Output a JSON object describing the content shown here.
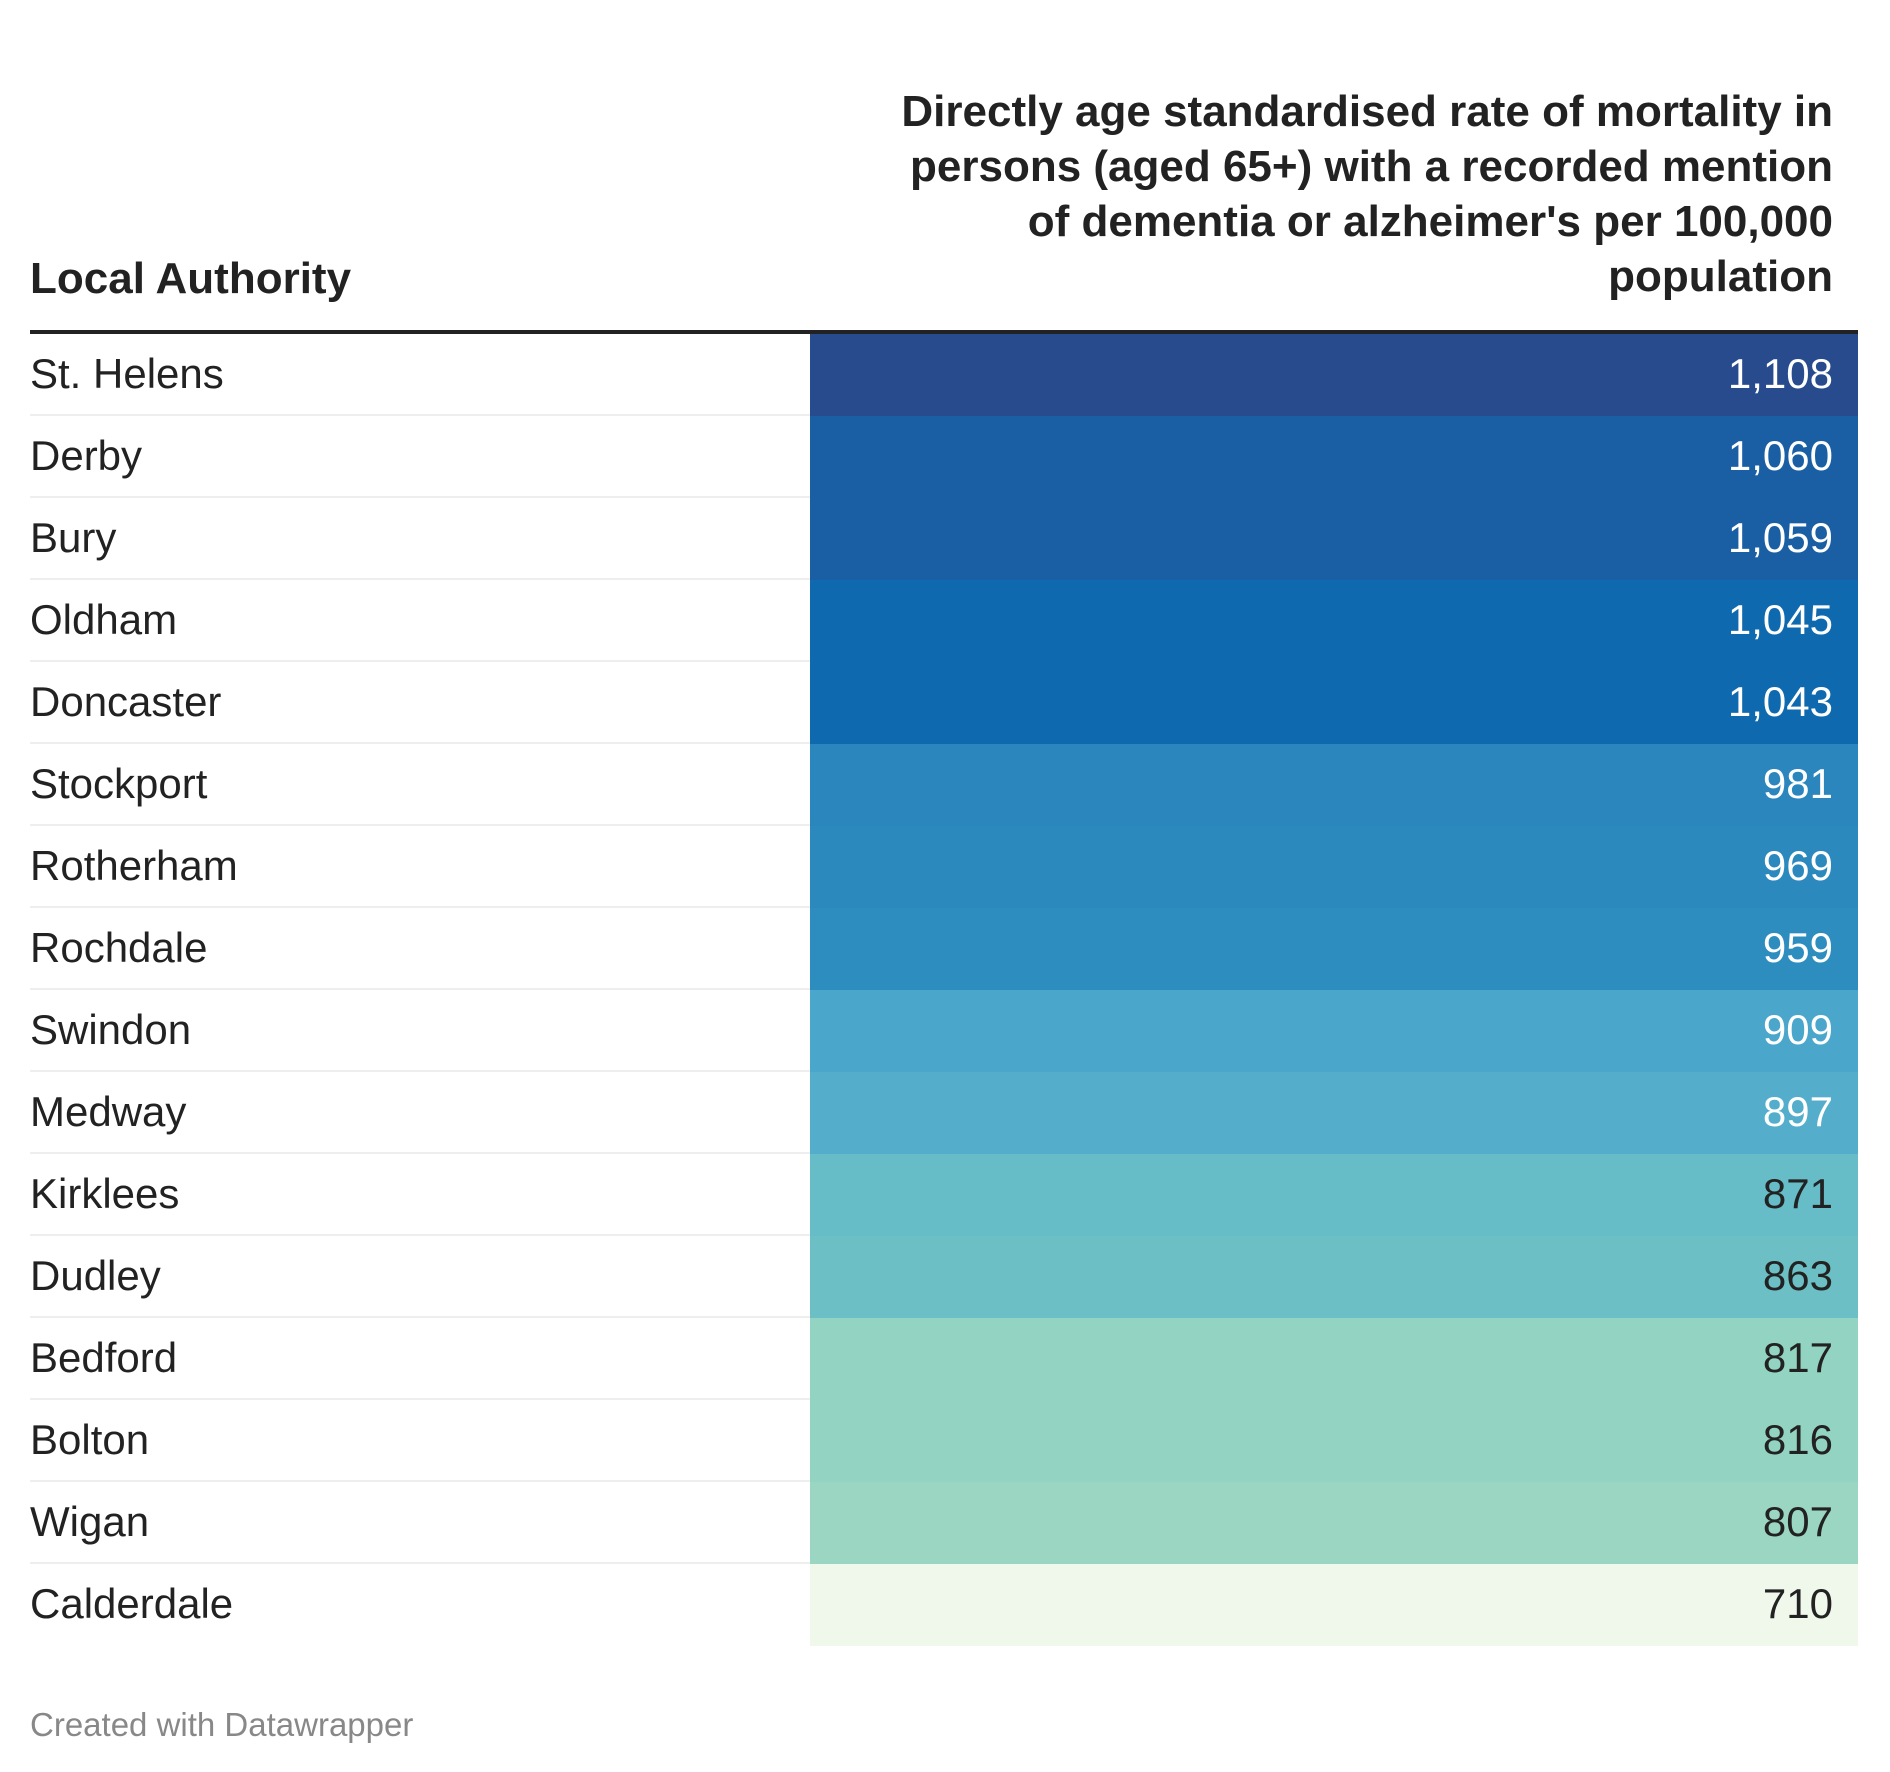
{
  "chart_data": {
    "type": "table",
    "columns": [
      "Local Authority",
      "Directly age standardised rate of mortality in persons (aged 65+) with a recorded mention of dementia or alzheimer's per 100,000 population"
    ],
    "header_lines": [
      "Directly age standardised rate of mortality in",
      "persons (aged 65+) with a recorded mention",
      "of dementia or alzheimer's per 100,000",
      "population"
    ],
    "rows": [
      {
        "name": "St. Helens",
        "value": "1,108",
        "color": "#284b8d"
      },
      {
        "name": "Derby",
        "value": "1,060",
        "color": "#1a5fa3"
      },
      {
        "name": "Bury",
        "value": "1,059",
        "color": "#1a5fa3"
      },
      {
        "name": "Oldham",
        "value": "1,045",
        "color": "#0f69ae"
      },
      {
        "name": "Doncaster",
        "value": "1,043",
        "color": "#0f69ae"
      },
      {
        "name": "Stockport",
        "value": "981",
        "color": "#2b86bd"
      },
      {
        "name": "Rotherham",
        "value": "969",
        "color": "#2b89be"
      },
      {
        "name": "Rochdale",
        "value": "959",
        "color": "#2e8dbf"
      },
      {
        "name": "Swindon",
        "value": "909",
        "color": "#4aa6cb"
      },
      {
        "name": "Medway",
        "value": "897",
        "color": "#54aecb"
      },
      {
        "name": "Kirklees",
        "value": "871",
        "color": "#66bcc7"
      },
      {
        "name": "Dudley",
        "value": "863",
        "color": "#6bbfc5"
      },
      {
        "name": "Bedford",
        "value": "817",
        "color": "#92d3c1"
      },
      {
        "name": "Bolton",
        "value": "816",
        "color": "#93d3c1"
      },
      {
        "name": "Wigan",
        "value": "807",
        "color": "#9bd6c2"
      },
      {
        "name": "Calderdale",
        "value": "710",
        "color": "#eff8eb"
      }
    ],
    "light_text_color": "#ffffff",
    "dark_text_color": "#222222"
  },
  "footer": {
    "credit": "Created with Datawrapper"
  }
}
